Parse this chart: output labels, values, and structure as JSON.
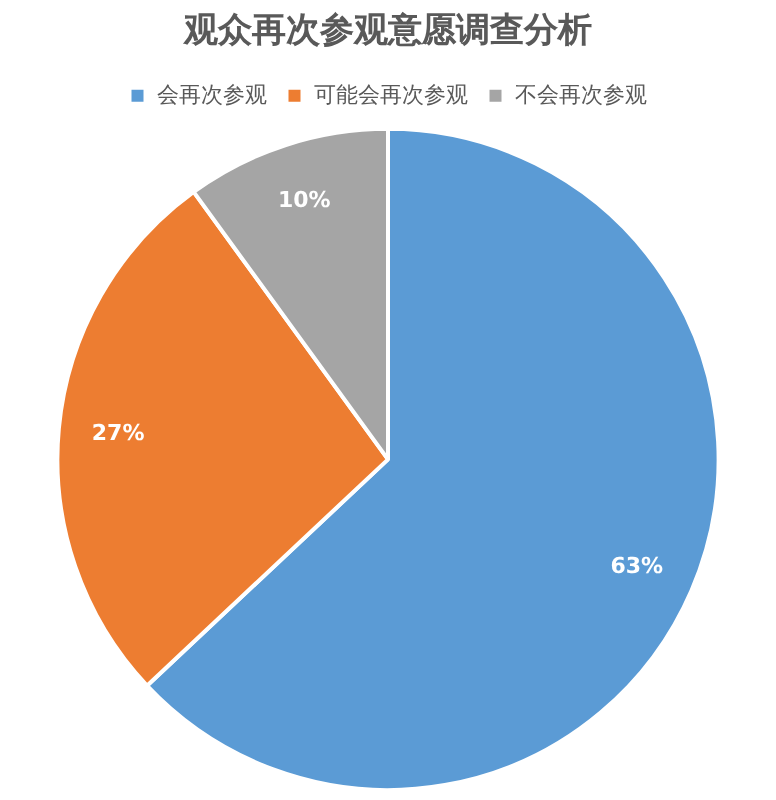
{
  "chart_data": {
    "type": "pie",
    "title": "观众再次参观意愿调查分析",
    "categories": [
      "会再次参观",
      "可能会再次参观",
      "不会再次参观"
    ],
    "values": [
      63,
      27,
      10
    ],
    "colors": [
      "#5b9bd5",
      "#ed7d31",
      "#a5a5a5"
    ],
    "value_labels": [
      "63%",
      "27%",
      "10%"
    ],
    "legend": "top"
  }
}
